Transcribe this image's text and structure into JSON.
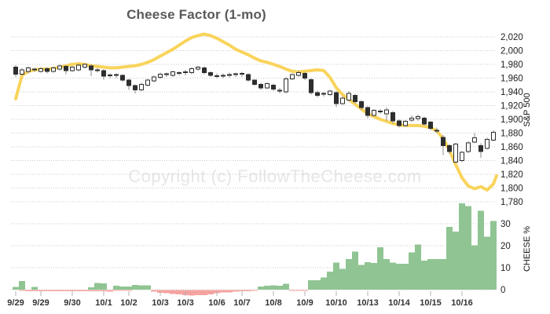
{
  "title": "Cheese Factor (1-mo)",
  "watermark": "Copyright (c) FollowTheCheese.com",
  "colors": {
    "line": "#f9d45c",
    "bar_pos": "#90c492",
    "bar_neg": "#f5a3a0",
    "candle_up_fill": "#ffffff",
    "candle_down_fill": "#2e2e2e",
    "candle_stroke": "#2e2e2e",
    "wick": "#8a8a8a",
    "grid": "#c9c9c9",
    "tick_text": "#222222",
    "date_text": "#333333",
    "tick_mark": "#b3b3b3",
    "title_text": "#595959",
    "watermark_text": "#e6e6e6"
  },
  "chart_data": {
    "type": "candlestick+line+bar",
    "title": "Cheese Factor (1-mo)",
    "layout_hints": {
      "grid": "dotted-horizontal",
      "legend": "none",
      "axes_side": "right"
    },
    "price_axis": {
      "label": "S&P 500",
      "min": 1780,
      "max": 2020,
      "ticks": [
        {
          "v": 1780,
          "label": "1,780"
        },
        {
          "v": 1800,
          "label": "1,800"
        },
        {
          "v": 1820,
          "label": "1,820"
        },
        {
          "v": 1840,
          "label": "1,840"
        },
        {
          "v": 1860,
          "label": "1,860"
        },
        {
          "v": 1880,
          "label": "1,880"
        },
        {
          "v": 1900,
          "label": "1,900"
        },
        {
          "v": 1920,
          "label": "1,920"
        },
        {
          "v": 1940,
          "label": "1,940"
        },
        {
          "v": 1960,
          "label": "1,960"
        },
        {
          "v": 1980,
          "label": "1,980"
        },
        {
          "v": 2000,
          "label": "2,000"
        },
        {
          "v": 2020,
          "label": "2,020"
        }
      ]
    },
    "cheese_axis": {
      "label": "CHEESE %",
      "min": 0,
      "max": 30,
      "ticks": [
        {
          "v": 0,
          "label": "0"
        },
        {
          "v": 10,
          "label": "10"
        },
        {
          "v": 20,
          "label": "20"
        },
        {
          "v": 30,
          "label": "30"
        }
      ]
    },
    "x_axis": {
      "ticks": [
        {
          "i": 0,
          "label": "9/29"
        },
        {
          "i": 4,
          "label": "9/29"
        },
        {
          "i": 9,
          "label": "9/30"
        },
        {
          "i": 14,
          "label": "10/1"
        },
        {
          "i": 18,
          "label": "10/2"
        },
        {
          "i": 23,
          "label": "10/3"
        },
        {
          "i": 27,
          "label": "10/3"
        },
        {
          "i": 32,
          "label": "10/6"
        },
        {
          "i": 36,
          "label": "10/7"
        },
        {
          "i": 41,
          "label": "10/8"
        },
        {
          "i": 46,
          "label": "10/9"
        },
        {
          "i": 51,
          "label": "10/10"
        },
        {
          "i": 56,
          "label": "10/13"
        },
        {
          "i": 61,
          "label": "10/14"
        },
        {
          "i": 66,
          "label": "10/15"
        },
        {
          "i": 71,
          "label": "10/16"
        }
      ]
    },
    "candles_ohlc": [
      [
        1976,
        1979,
        1962,
        1966
      ],
      [
        1966,
        1975,
        1964,
        1972
      ],
      [
        1970,
        1977,
        1967,
        1975
      ],
      [
        1972,
        1975,
        1969,
        1973
      ],
      [
        1970,
        1976,
        1968,
        1974
      ],
      [
        1974,
        1976,
        1967,
        1970
      ],
      [
        1970,
        1977,
        1968,
        1975
      ],
      [
        1973,
        1980,
        1971,
        1978
      ],
      [
        1977,
        1979,
        1966,
        1971
      ],
      [
        1971,
        1978,
        1969,
        1976
      ],
      [
        1972,
        1981,
        1970,
        1979
      ],
      [
        1976,
        1981,
        1974,
        1980
      ],
      [
        1978,
        1980,
        1963,
        1972
      ],
      [
        1972,
        1975,
        1968,
        1971
      ],
      [
        1971,
        1973,
        1958,
        1963
      ],
      [
        1963,
        1967,
        1960,
        1965
      ],
      [
        1965,
        1967,
        1960,
        1964
      ],
      [
        1964,
        1966,
        1955,
        1957
      ],
      [
        1957,
        1959,
        1943,
        1949
      ],
      [
        1949,
        1951,
        1938,
        1943
      ],
      [
        1943,
        1953,
        1941,
        1951
      ],
      [
        1950,
        1959,
        1948,
        1957
      ],
      [
        1956,
        1964,
        1954,
        1962
      ],
      [
        1961,
        1968,
        1959,
        1966
      ],
      [
        1965,
        1968,
        1962,
        1966
      ],
      [
        1964,
        1971,
        1962,
        1969
      ],
      [
        1967,
        1970,
        1964,
        1968
      ],
      [
        1968,
        1972,
        1964,
        1969
      ],
      [
        1968,
        1976,
        1966,
        1974
      ],
      [
        1973,
        1978,
        1971,
        1976
      ],
      [
        1975,
        1977,
        1966,
        1968
      ],
      [
        1968,
        1970,
        1962,
        1964
      ],
      [
        1964,
        1967,
        1960,
        1962
      ],
      [
        1963,
        1967,
        1960,
        1964
      ],
      [
        1964,
        1968,
        1961,
        1965
      ],
      [
        1965,
        1968,
        1962,
        1966
      ],
      [
        1966,
        1969,
        1962,
        1967
      ],
      [
        1965,
        1967,
        1955,
        1957
      ],
      [
        1957,
        1958,
        1949,
        1951
      ],
      [
        1951,
        1953,
        1943,
        1946
      ],
      [
        1946,
        1954,
        1944,
        1952
      ],
      [
        1950,
        1952,
        1941,
        1944
      ],
      [
        1943,
        1946,
        1938,
        1941
      ],
      [
        1940,
        1962,
        1938,
        1959
      ],
      [
        1959,
        1967,
        1957,
        1965
      ],
      [
        1964,
        1971,
        1962,
        1968
      ],
      [
        1967,
        1969,
        1957,
        1960
      ],
      [
        1958,
        1960,
        1936,
        1939
      ],
      [
        1939,
        1942,
        1932,
        1935
      ],
      [
        1936,
        1940,
        1933,
        1938
      ],
      [
        1936,
        1943,
        1934,
        1941
      ],
      [
        1939,
        1941,
        1918,
        1923
      ],
      [
        1923,
        1934,
        1921,
        1931
      ],
      [
        1928,
        1941,
        1926,
        1938
      ],
      [
        1935,
        1937,
        1923,
        1926
      ],
      [
        1926,
        1928,
        1914,
        1917
      ],
      [
        1917,
        1919,
        1902,
        1906
      ],
      [
        1906,
        1915,
        1904,
        1913
      ],
      [
        1911,
        1915,
        1908,
        1912
      ],
      [
        1908,
        1917,
        1898,
        1914
      ],
      [
        1910,
        1912,
        1894,
        1898
      ],
      [
        1898,
        1900,
        1888,
        1891
      ],
      [
        1891,
        1899,
        1889,
        1897
      ],
      [
        1899,
        1906,
        1896,
        1902
      ],
      [
        1901,
        1907,
        1898,
        1904
      ],
      [
        1902,
        1904,
        1891,
        1893
      ],
      [
        1896,
        1898,
        1884,
        1887
      ],
      [
        1884,
        1888,
        1880,
        1883
      ],
      [
        1874,
        1877,
        1848,
        1862
      ],
      [
        1862,
        1864,
        1850,
        1853
      ],
      [
        1838,
        1866,
        1836,
        1864
      ],
      [
        1840,
        1854,
        1838,
        1852
      ],
      [
        1853,
        1868,
        1851,
        1866
      ],
      [
        1867,
        1880,
        1865,
        1873
      ],
      [
        1862,
        1865,
        1844,
        1853
      ],
      [
        1858,
        1873,
        1856,
        1871
      ],
      [
        1870,
        1884,
        1868,
        1881
      ]
    ],
    "cheese_line_sp500": [
      1930,
      1964,
      1970,
      1972,
      1973,
      1973,
      1974,
      1976,
      1978,
      1980,
      1981,
      1980,
      1978,
      1977,
      1976,
      1975,
      1975,
      1976,
      1977,
      1978,
      1980,
      1983,
      1987,
      1992,
      1997,
      2002,
      2008,
      2014,
      2019,
      2022,
      2024,
      2022,
      2018,
      2013,
      2008,
      2002,
      1998,
      1994,
      1989,
      1985,
      1983,
      1980,
      1977,
      1973,
      1970,
      1969,
      1970,
      1971,
      1972,
      1971,
      1961,
      1946,
      1936,
      1929,
      1922,
      1915,
      1908,
      1904,
      1900,
      1897,
      1894,
      1892,
      1891,
      1891,
      1891,
      1890,
      1888,
      1883,
      1872,
      1855,
      1834,
      1815,
      1803,
      1799,
      1802,
      1797,
      1806,
      1818
    ],
    "cheese_pct_pos": [
      1.2,
      4.0,
      0,
      1.2,
      0,
      0,
      0,
      0,
      0,
      0,
      0,
      0,
      1.0,
      3.0,
      2.8,
      0,
      1.8,
      1.5,
      1.5,
      2.2,
      2.0,
      2.0,
      0,
      0,
      0,
      0,
      0,
      0,
      0,
      0,
      0,
      0,
      0,
      0,
      0,
      0,
      0,
      0,
      0,
      1.5,
      1.8,
      2.0,
      1.8,
      2.6,
      0,
      0,
      0,
      4.2,
      4.2,
      5.6,
      8.2,
      12.4,
      9.4,
      13.9,
      17.3,
      11.3,
      12.5,
      12.1,
      19.3,
      13.9,
      12.4,
      11.8,
      11.8,
      16.9,
      20.5,
      13.3,
      13.9,
      13.9,
      13.9,
      28.5,
      26.4,
      39.2,
      38.0,
      20.1,
      35.9,
      24.1,
      31.2
    ],
    "cheese_pct_neg": [
      0,
      -0.4,
      -0.5,
      -0.5,
      -0.5,
      -0.5,
      -0.5,
      -0.5,
      -0.6,
      -0.5,
      -0.5,
      -0.6,
      -0.6,
      -0.6,
      -0.5,
      -0.7,
      -0.4,
      -0.4,
      -0.4,
      0,
      0,
      0,
      -0.8,
      -1.2,
      -1.5,
      -1.8,
      -2.0,
      -2.3,
      -2.5,
      -2.3,
      -2.4,
      -2.0,
      -1.5,
      -1.0,
      -1.0,
      -0.8,
      -0.6,
      -0.5,
      -0.4,
      0,
      0,
      0,
      0,
      0,
      -0.3,
      -0.3,
      -0.3,
      0,
      0,
      0,
      0,
      0,
      0,
      0,
      0,
      0,
      0,
      0,
      0,
      0,
      0,
      0,
      0,
      0,
      0,
      0,
      0,
      0,
      0,
      0,
      0,
      0,
      0,
      0,
      0,
      0,
      0
    ]
  }
}
